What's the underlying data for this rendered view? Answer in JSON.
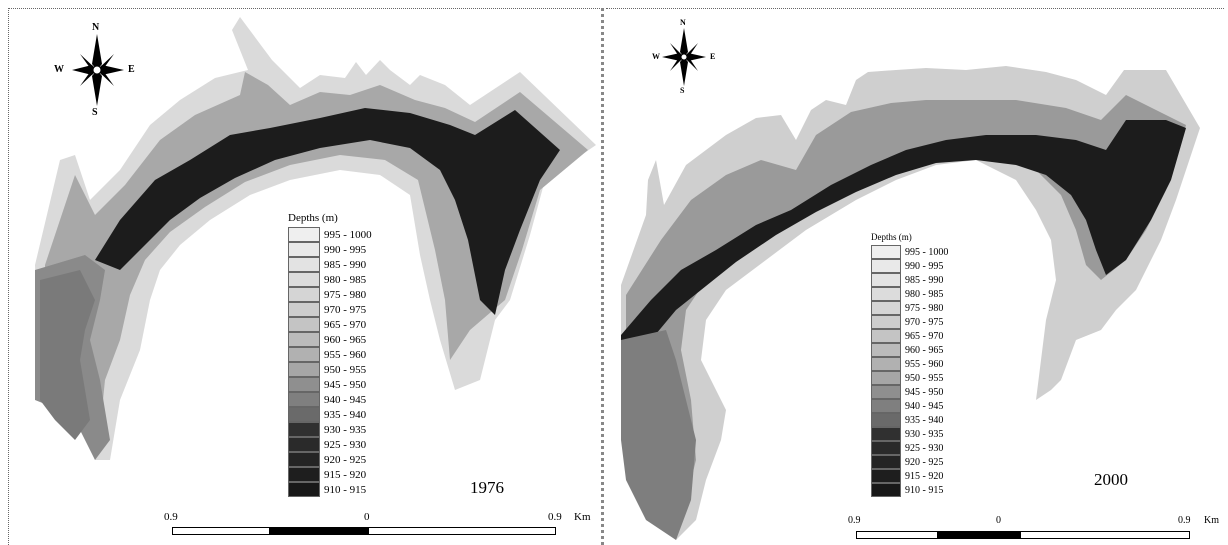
{
  "maps": [
    {
      "year": "1976",
      "compass": {
        "n": "N",
        "s": "S",
        "e": "E",
        "w": "W"
      },
      "legend_title": "Depths  (m)",
      "scale": {
        "left": "0.9",
        "mid": "0",
        "right": "0.9",
        "unit": "Km"
      }
    },
    {
      "year": "2000",
      "compass": {
        "n": "N",
        "s": "S",
        "e": "E",
        "w": "W"
      },
      "legend_title": "Depths (m)",
      "scale": {
        "left": "0.9",
        "mid": "0",
        "right": "0.9",
        "unit": "Km"
      }
    }
  ],
  "legend_classes": [
    {
      "label": "995 - 1000",
      "color": "#efefef"
    },
    {
      "label": "990 - 995",
      "color": "#e9e9e9"
    },
    {
      "label": "985 - 990",
      "color": "#e3e3e3"
    },
    {
      "label": "980 - 985",
      "color": "#dcdcdc"
    },
    {
      "label": "975 - 980",
      "color": "#d5d5d5"
    },
    {
      "label": "970 - 975",
      "color": "#cdcdcd"
    },
    {
      "label": "965 - 970",
      "color": "#c4c4c4"
    },
    {
      "label": "960 - 965",
      "color": "#bbbbbb"
    },
    {
      "label": "955 - 960",
      "color": "#b1b1b1"
    },
    {
      "label": "950 - 955",
      "color": "#a6a6a6"
    },
    {
      "label": "945 - 950",
      "color": "#8f8f8f"
    },
    {
      "label": "940 - 945",
      "color": "#7f7f7f"
    },
    {
      "label": "935 - 940",
      "color": "#6a6a6a"
    },
    {
      "label": "930 - 935",
      "color": "#303030"
    },
    {
      "label": "925 - 930",
      "color": "#2a2a2a"
    },
    {
      "label": "920 - 925",
      "color": "#242424"
    },
    {
      "label": "915 - 920",
      "color": "#1e1e1e"
    },
    {
      "label": "910 - 915",
      "color": "#181818"
    }
  ]
}
